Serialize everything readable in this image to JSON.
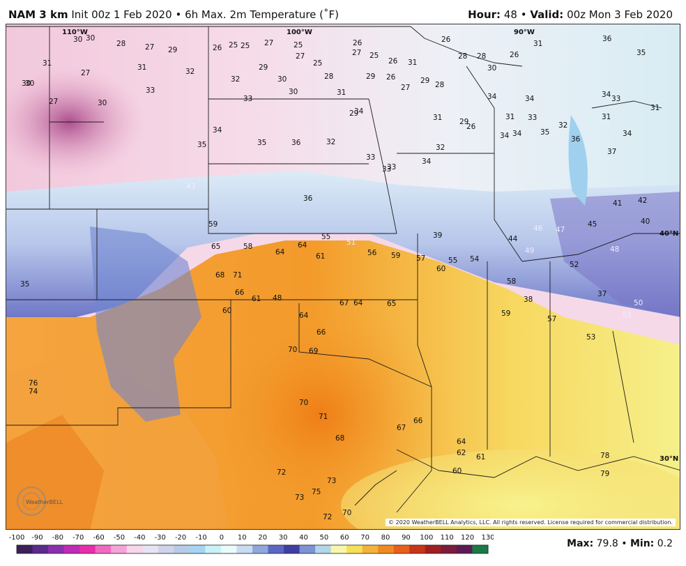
{
  "header": {
    "model": "NAM 3 km",
    "init_text": "Init 00z 1 Feb 2020",
    "bullet": "•",
    "product": "6h Max. 2m Temperature (˚F)",
    "hour_label": "Hour:",
    "hour_value": "48",
    "valid_label": "Valid:",
    "valid_value": "00z Mon 3 Feb 2020"
  },
  "map": {
    "meridians": [
      {
        "label": "110°W"
      },
      {
        "label": "100°W"
      },
      {
        "label": "90°W"
      },
      {
        "label": "40°N"
      },
      {
        "label": "30°N"
      }
    ],
    "temperature_values_upper": [
      "30",
      "30",
      "28",
      "27",
      "29",
      "26",
      "25",
      "25",
      "27",
      "25",
      "26",
      "27",
      "25",
      "26",
      "26",
      "28",
      "28",
      "26",
      "36",
      "31",
      "35",
      "27",
      "31",
      "32",
      "31",
      "32",
      "29",
      "30",
      "27",
      "29",
      "30",
      "26",
      "31",
      "30",
      "33",
      "25",
      "28",
      "30",
      "31",
      "27",
      "27",
      "29",
      "28",
      "34",
      "34",
      "33",
      "34",
      "34",
      "31",
      "34",
      "35",
      "36",
      "35",
      "32",
      "33",
      "33",
      "30",
      "30",
      "29",
      "32",
      "31",
      "29",
      "26",
      "31",
      "33",
      "32",
      "33",
      "31",
      "34",
      "34",
      "35",
      "36",
      "37",
      "34",
      "33",
      "34"
    ],
    "temperature_values_lower": [
      "59",
      "58",
      "65",
      "64",
      "64",
      "68",
      "71",
      "66",
      "61",
      "48",
      "60",
      "64",
      "61",
      "67",
      "64",
      "55",
      "51",
      "56",
      "59",
      "57",
      "60",
      "55",
      "54",
      "65",
      "66",
      "70",
      "69",
      "71",
      "70",
      "68",
      "72",
      "73",
      "75",
      "73",
      "72",
      "70",
      "67",
      "66",
      "64",
      "62",
      "61",
      "60",
      "58",
      "59",
      "57",
      "53",
      "52",
      "51",
      "50",
      "49",
      "48",
      "47",
      "46",
      "45",
      "44",
      "43",
      "42",
      "41",
      "40",
      "39",
      "38",
      "37",
      "36",
      "35",
      "76",
      "74",
      "78",
      "79"
    ],
    "copyright": "© 2020 WeatherBELL Analytics, LLC. All rights reserved. License required for commercial distribution.",
    "logo_text": "WeatherBELL"
  },
  "colorbar": {
    "ticks": [
      "-100",
      "-90",
      "-80",
      "-70",
      "-60",
      "-50",
      "-40",
      "-30",
      "-20",
      "-10",
      "0",
      "10",
      "20",
      "30",
      "40",
      "50",
      "60",
      "70",
      "80",
      "90",
      "100",
      "110",
      "120",
      "130"
    ],
    "colors": [
      "#3b1e5a",
      "#5a2a8c",
      "#8a2fb0",
      "#c02ab7",
      "#e62fa8",
      "#f06ac0",
      "#f5a3d6",
      "#f8d5ea",
      "#e8e3f1",
      "#cfd3ec",
      "#b7cbe8",
      "#a6d4f2",
      "#c9f1f7",
      "#e9fbfb",
      "#c7dcf0",
      "#8fa8dc",
      "#5b66c4",
      "#3f3ea3",
      "#7d93d2",
      "#b0d6e8",
      "#f6f7a8",
      "#f5df58",
      "#f3b23a",
      "#ef8a22",
      "#e85e1a",
      "#c93418",
      "#9e1f22",
      "#7a1c3a",
      "#5a1b52",
      "#1a7a46"
    ]
  },
  "stats": {
    "max_label": "Max:",
    "max_value": "79.8",
    "bullet": "•",
    "min_label": "Min:",
    "min_value": "0.2"
  }
}
